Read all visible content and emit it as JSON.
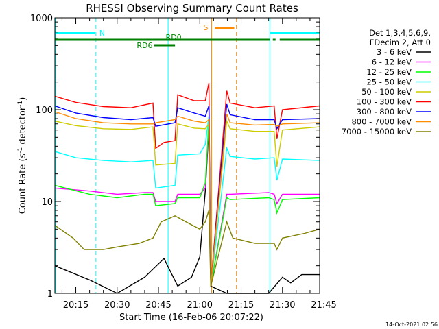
{
  "chart_data": {
    "type": "line",
    "title": "RHESSI Observing Summary Count Rates",
    "xlabel": "Start Time (16-Feb-06 20:07:22)",
    "ylabel_main": "Count Rate (s",
    "ylabel_sup1": "-1",
    "ylabel_mid": " detector",
    "ylabel_sup2": "-1",
    "ylabel_end": ")",
    "y_scale": "log",
    "ylim": [
      1,
      1000
    ],
    "y_ticks": [
      1,
      10,
      100,
      1000
    ],
    "y_tick_labels": [
      "1",
      "10",
      "100",
      "1000"
    ],
    "x_range_min": [
      7.4,
      103.5
    ],
    "x_ticks_min": [
      15,
      30,
      45,
      60,
      75,
      90,
      105
    ],
    "x_tick_labels": [
      "20:15",
      "20:30",
      "20:45",
      "21:00",
      "21:15",
      "21:30",
      "21:45"
    ],
    "legend_header": [
      "Det 1,3,4,5,6,9,",
      "FDecim 2, Att 0"
    ],
    "legend_placement": "right",
    "series": [
      {
        "name": "3 - 6 keV",
        "color": "#000000",
        "values": [
          [
            7.4,
            2
          ],
          [
            20,
            1.4
          ],
          [
            30,
            1
          ],
          [
            40,
            1.5
          ],
          [
            47,
            2.4
          ],
          [
            52,
            1.2
          ],
          [
            57,
            1.5
          ],
          [
            60,
            2.5
          ],
          [
            62,
            13
          ],
          [
            63.3,
            62
          ],
          [
            64,
            1.2
          ],
          [
            69.8,
            1
          ],
          [
            85,
            1
          ],
          [
            90,
            1.5
          ],
          [
            93,
            1.3
          ],
          [
            97,
            1.6
          ],
          [
            103.5,
            1.6
          ]
        ]
      },
      {
        "name": "6 - 12 keV",
        "color": "#ff00ff",
        "values": [
          [
            7.4,
            14
          ],
          [
            20,
            13
          ],
          [
            30,
            12
          ],
          [
            40,
            12.5
          ],
          [
            43,
            12.5
          ],
          [
            44,
            10
          ],
          [
            51,
            10
          ],
          [
            52,
            12
          ],
          [
            60,
            12
          ],
          [
            62,
            14
          ],
          [
            63.3,
            70
          ],
          [
            64,
            1.2
          ],
          [
            69.8,
            12
          ],
          [
            71,
            12
          ],
          [
            85,
            12.5
          ],
          [
            87,
            12
          ],
          [
            88,
            9.5
          ],
          [
            90,
            12
          ],
          [
            103.5,
            12
          ]
        ]
      },
      {
        "name": "12 - 25 keV",
        "color": "#00ff00",
        "values": [
          [
            7.4,
            15
          ],
          [
            20,
            12
          ],
          [
            30,
            11
          ],
          [
            40,
            12
          ],
          [
            43,
            12
          ],
          [
            44,
            9
          ],
          [
            51,
            9.5
          ],
          [
            52,
            11
          ],
          [
            60,
            11
          ],
          [
            62,
            16
          ],
          [
            63.3,
            75
          ],
          [
            64,
            1.2
          ],
          [
            69.8,
            11
          ],
          [
            71,
            10.5
          ],
          [
            85,
            11
          ],
          [
            87,
            10.5
          ],
          [
            88,
            7.5
          ],
          [
            90,
            10.5
          ],
          [
            103.5,
            11
          ]
        ]
      },
      {
        "name": "25 - 50 keV",
        "color": "#00ffff",
        "values": [
          [
            7.4,
            35
          ],
          [
            15,
            30
          ],
          [
            25,
            28
          ],
          [
            35,
            27
          ],
          [
            43,
            28
          ],
          [
            44,
            14
          ],
          [
            51,
            15
          ],
          [
            52,
            32
          ],
          [
            60,
            33
          ],
          [
            62,
            42
          ],
          [
            63.3,
            85
          ],
          [
            64,
            1.2
          ],
          [
            69.8,
            38
          ],
          [
            71,
            31
          ],
          [
            80,
            29
          ],
          [
            87,
            30
          ],
          [
            88,
            17
          ],
          [
            90,
            29
          ],
          [
            103.5,
            28
          ]
        ]
      },
      {
        "name": "50 - 100 keV",
        "color": "#cccc00",
        "values": [
          [
            7.4,
            75
          ],
          [
            15,
            67
          ],
          [
            25,
            62
          ],
          [
            35,
            61
          ],
          [
            43,
            65
          ],
          [
            44,
            25
          ],
          [
            51,
            26
          ],
          [
            52,
            70
          ],
          [
            58,
            63
          ],
          [
            62,
            62
          ],
          [
            63.3,
            70
          ],
          [
            64,
            1.2
          ],
          [
            69.8,
            75
          ],
          [
            71,
            62
          ],
          [
            80,
            58
          ],
          [
            87,
            58
          ],
          [
            88,
            24
          ],
          [
            90,
            60
          ],
          [
            103.5,
            65
          ]
        ]
      },
      {
        "name": "100 - 300 keV",
        "color": "#ff0000",
        "values": [
          [
            7.4,
            140
          ],
          [
            15,
            120
          ],
          [
            25,
            108
          ],
          [
            35,
            105
          ],
          [
            43,
            118
          ],
          [
            44,
            38
          ],
          [
            47,
            44
          ],
          [
            51,
            46
          ],
          [
            52,
            145
          ],
          [
            58,
            125
          ],
          [
            62,
            125
          ],
          [
            63.3,
            195
          ],
          [
            64,
            1.2
          ],
          [
            69.8,
            160
          ],
          [
            71,
            118
          ],
          [
            80,
            105
          ],
          [
            87,
            110
          ],
          [
            88,
            48
          ],
          [
            90,
            100
          ],
          [
            103.5,
            110
          ]
        ]
      },
      {
        "name": "300 - 800 keV",
        "color": "#0000ff",
        "values": [
          [
            7.4,
            110
          ],
          [
            15,
            92
          ],
          [
            25,
            82
          ],
          [
            35,
            78
          ],
          [
            43,
            82
          ],
          [
            44,
            66
          ],
          [
            51,
            72
          ],
          [
            52,
            105
          ],
          [
            58,
            92
          ],
          [
            62,
            85
          ],
          [
            63.3,
            110
          ],
          [
            64,
            1.2
          ],
          [
            69.8,
            115
          ],
          [
            71,
            88
          ],
          [
            80,
            78
          ],
          [
            87,
            78
          ],
          [
            88,
            62
          ],
          [
            90,
            78
          ],
          [
            103.5,
            80
          ]
        ]
      },
      {
        "name": "800 - 7000 keV",
        "color": "#ff8c00",
        "values": [
          [
            7.4,
            95
          ],
          [
            15,
            80
          ],
          [
            25,
            72
          ],
          [
            35,
            70
          ],
          [
            43,
            70
          ],
          [
            44,
            72
          ],
          [
            51,
            78
          ],
          [
            52,
            85
          ],
          [
            58,
            75
          ],
          [
            62,
            72
          ],
          [
            63.3,
            78
          ],
          [
            64,
            1.2
          ],
          [
            69.8,
            90
          ],
          [
            71,
            72
          ],
          [
            80,
            68
          ],
          [
            87,
            69
          ],
          [
            88,
            66
          ],
          [
            90,
            70
          ],
          [
            103.5,
            72
          ]
        ]
      },
      {
        "name": "7000 - 15000 keV",
        "color": "#808000",
        "values": [
          [
            7.4,
            5.5
          ],
          [
            14,
            4
          ],
          [
            18,
            3
          ],
          [
            25,
            3
          ],
          [
            30,
            3.2
          ],
          [
            38,
            3.5
          ],
          [
            43,
            4
          ],
          [
            46,
            6
          ],
          [
            51,
            7
          ],
          [
            55,
            6
          ],
          [
            60,
            5
          ],
          [
            62,
            6
          ],
          [
            63.3,
            8
          ],
          [
            64,
            1.2
          ],
          [
            69.8,
            6
          ],
          [
            72,
            4
          ],
          [
            80,
            3.5
          ],
          [
            87,
            3.5
          ],
          [
            88,
            3
          ],
          [
            90,
            4
          ],
          [
            98,
            4.5
          ],
          [
            103.5,
            5
          ]
        ]
      }
    ],
    "bars": {
      "night_label": "N",
      "saa_label": "S",
      "rd0_label": "RD0",
      "rd6_label": "RD6"
    }
  },
  "footer": {
    "timestamp": "14-Oct-2021 02:56"
  }
}
